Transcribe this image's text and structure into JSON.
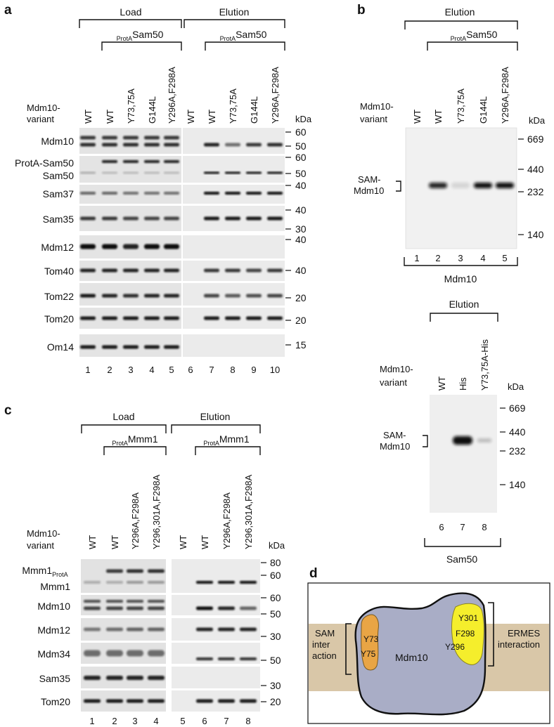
{
  "panel_labels": {
    "a": "a",
    "b": "b",
    "c": "c",
    "d": "d"
  },
  "kda": "kDa",
  "variant_label": [
    "Mdm10-",
    "variant"
  ],
  "protA_prefix": "ProtA",
  "panel_a": {
    "load": "Load",
    "elution": "Elution",
    "sam50": "Sam50",
    "lanes": [
      "WT",
      "WT",
      "Y73,75A",
      "G144L",
      "Y296A,F298A",
      "WT",
      "WT",
      "Y73,75A",
      "G144L",
      "Y296A,F298A"
    ],
    "lane_numbers": [
      "1",
      "2",
      "3",
      "4",
      "5",
      "6",
      "7",
      "8",
      "9",
      "10"
    ],
    "rows": [
      "Mdm10",
      "ProtA-Sam50",
      "Sam50",
      "Sam37",
      "Sam35",
      "Mdm12",
      "Tom40",
      "Tom22",
      "Tom20",
      "Om14"
    ],
    "markers": [
      "60",
      "50",
      "60",
      "50",
      "40",
      "40",
      "30",
      "40",
      "40",
      "20",
      "20",
      "15"
    ]
  },
  "panel_b1": {
    "elution": "Elution",
    "sam50": "Sam50",
    "lanes": [
      "WT",
      "WT",
      "Y73,75A",
      "G144L",
      "Y296A,F298A"
    ],
    "lane_numbers": [
      "1",
      "2",
      "3",
      "4",
      "5"
    ],
    "band_label": [
      "SAM-",
      "Mdm10"
    ],
    "markers": [
      "669",
      "440",
      "232",
      "140"
    ],
    "footer": "Mdm10"
  },
  "panel_b2": {
    "elution": "Elution",
    "lanes": [
      "WT",
      "His",
      "Y73,75A-His"
    ],
    "lane_numbers": [
      "6",
      "7",
      "8"
    ],
    "band_label": [
      "SAM-",
      "Mdm10"
    ],
    "markers": [
      "669",
      "440",
      "232",
      "140"
    ],
    "footer": "Sam50"
  },
  "panel_c": {
    "load": "Load",
    "elution": "Elution",
    "mmm1": "Mmm1",
    "lanes": [
      "WT",
      "WT",
      "Y296A,F298A",
      "Y296,301A,F298A",
      "WT",
      "WT",
      "Y296A,F298A",
      "Y296,301A,F298A"
    ],
    "lane_numbers": [
      "1",
      "2",
      "3",
      "4",
      "5",
      "6",
      "7",
      "8"
    ],
    "rows": [
      "Mmm1",
      "Mmm1",
      "Mdm10",
      "Mdm12",
      "Mdm34",
      "Sam35",
      "Tom20"
    ],
    "mmm1_sub": "ProtA",
    "markers": [
      "80",
      "60",
      "60",
      "50",
      "30",
      "50",
      "30",
      "20"
    ]
  },
  "panel_d": {
    "protein": "Mdm10",
    "sam_label": [
      "SAM",
      "inter",
      "action"
    ],
    "sam_residues": [
      "Y73",
      "Y75"
    ],
    "ermes_residues": [
      "Y301",
      "F298",
      "Y296"
    ],
    "ermes_label": [
      "ERMES",
      "interaction"
    ],
    "colors": {
      "membrane": "#d9c7a8",
      "protein": "#a9adc6",
      "sam_patch": "#e9a545",
      "ermes_patch": "#f5ee2c"
    }
  }
}
